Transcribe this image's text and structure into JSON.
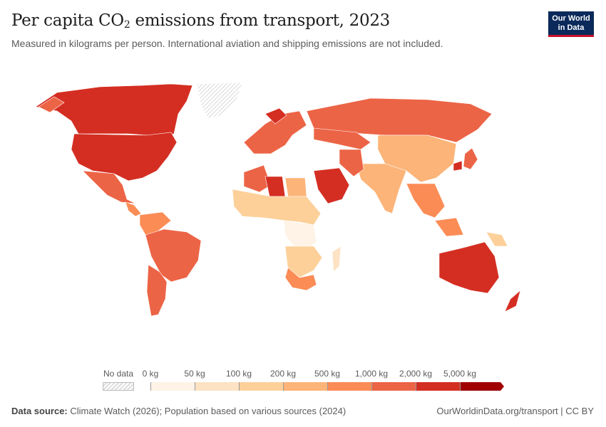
{
  "header": {
    "title_prefix": "Per capita CO",
    "title_sub": "2",
    "title_suffix": " emissions from transport, 2023",
    "subtitle": "Measured in kilograms per person. International aviation and shipping emissions are not included.",
    "logo_line1": "Our World",
    "logo_line2": "in Data"
  },
  "legend": {
    "no_data_label": "No data",
    "ticks": [
      "0 kg",
      "50 kg",
      "100 kg",
      "200 kg",
      "500 kg",
      "1,000 kg",
      "2,000 kg",
      "5,000 kg"
    ],
    "bin_colors": [
      "#fef3e6",
      "#fde3c3",
      "#fdd09a",
      "#fcb478",
      "#fb8c55",
      "#ec6446",
      "#d42e22",
      "#a10000"
    ],
    "no_data_color": "#e6e6e6"
  },
  "footer": {
    "source_label": "Data source:",
    "source_text": " Climate Watch (2026); Population based on various sources (2024)",
    "url_text": "OurWorldinData.org/transport | CC BY"
  }
}
